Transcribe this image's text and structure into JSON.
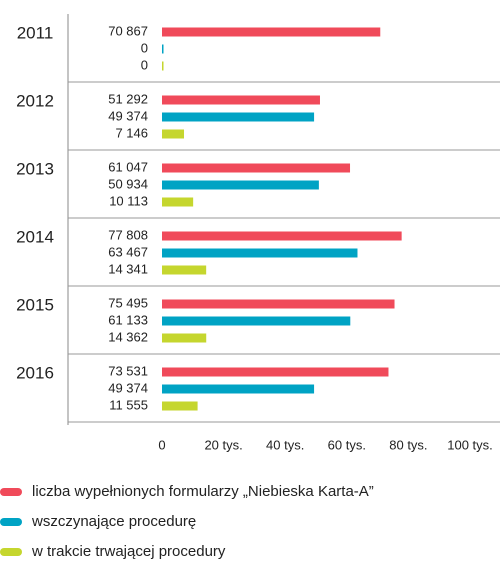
{
  "chart_data": {
    "type": "barh",
    "categories": [
      "2011",
      "2012",
      "2013",
      "2014",
      "2015",
      "2016"
    ],
    "series": [
      {
        "name": "liczba wypełnionych formularzy „Niebieska Karta-A”",
        "color": "#f04a5a",
        "values": [
          70867,
          51292,
          61047,
          77808,
          75495,
          73531
        ],
        "value_labels": [
          "70 867",
          "51 292",
          "61 047",
          "77 808",
          "75 495",
          "73 531"
        ]
      },
      {
        "name": "wszczynające procedurę",
        "color": "#00a3c4",
        "values": [
          0,
          49374,
          50934,
          63467,
          61133,
          49374
        ],
        "value_labels": [
          "0",
          "49 374",
          "50 934",
          "63 467",
          "61 133",
          "49 374"
        ]
      },
      {
        "name": "w trakcie trwającej procedury",
        "color": "#c5d62e",
        "values": [
          0,
          7146,
          10113,
          14341,
          14362,
          11555
        ],
        "value_labels": [
          "0",
          "7 146",
          "10 113",
          "14 341",
          "14 362",
          "11 555"
        ]
      }
    ],
    "xlim": [
      0,
      100000
    ],
    "xticks": [
      0,
      {
        "value": 20000,
        "label": "20 tys."
      },
      {
        "value": 40000,
        "label": "40 tys."
      },
      {
        "value": 60000,
        "label": "60 tys."
      },
      {
        "value": 80000,
        "label": "80 tys."
      },
      {
        "value": 100000,
        "label": "100 tys."
      }
    ],
    "legend": "bottom-left"
  }
}
